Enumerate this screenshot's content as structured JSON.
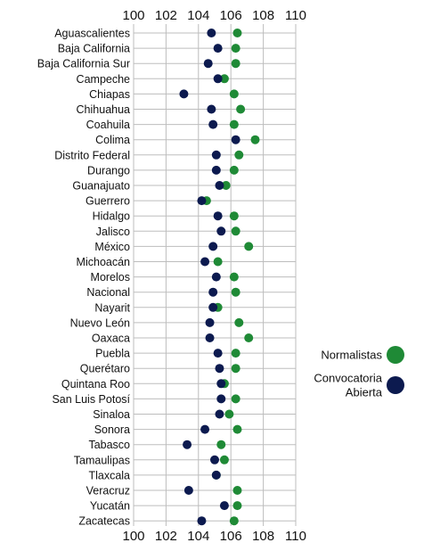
{
  "chart_data": {
    "type": "scatter",
    "title": "",
    "xlabel": "",
    "ylabel": "",
    "xlim": [
      100,
      110
    ],
    "xticks": [
      "100",
      "102",
      "104",
      "106",
      "108",
      "110"
    ],
    "grid": true,
    "legend_position": "right",
    "categories": [
      "Aguascalientes",
      "Baja California",
      "Baja California Sur",
      "Campeche",
      "Chiapas",
      "Chihuahua",
      "Coahuila",
      "Colima",
      "Distrito Federal",
      "Durango",
      "Guanajuato",
      "Guerrero",
      "Hidalgo",
      "Jalisco",
      "México",
      "Michoacán",
      "Morelos",
      "Nacional",
      "Nayarit",
      "Nuevo León",
      "Oaxaca",
      "Puebla",
      "Querétaro",
      "Quintana Roo",
      "San Luis Potosí",
      "Sinaloa",
      "Sonora",
      "Tabasco",
      "Tamaulipas",
      "Tlaxcala",
      "Veracruz",
      "Yucatán",
      "Zacatecas"
    ],
    "series": [
      {
        "name": "Normalistas",
        "color": "#1f8a36",
        "values": [
          106.4,
          106.3,
          106.3,
          105.6,
          106.2,
          106.6,
          106.2,
          107.5,
          106.5,
          106.2,
          105.7,
          104.5,
          106.2,
          106.3,
          107.1,
          105.2,
          106.2,
          106.3,
          105.2,
          106.5,
          107.1,
          106.3,
          106.3,
          105.6,
          106.3,
          105.9,
          106.4,
          105.4,
          105.6,
          105.1,
          106.4,
          106.4,
          106.2
        ]
      },
      {
        "name": "Convocatoria\nAbierta",
        "color": "#0c1a4f",
        "values": [
          104.8,
          105.2,
          104.6,
          105.2,
          103.1,
          104.8,
          104.9,
          106.3,
          105.1,
          105.1,
          105.3,
          104.2,
          105.2,
          105.4,
          104.9,
          104.4,
          105.1,
          104.9,
          104.9,
          104.7,
          104.7,
          105.2,
          105.3,
          105.4,
          105.4,
          105.3,
          104.4,
          103.3,
          105.0,
          105.1,
          103.4,
          105.6,
          104.2
        ]
      }
    ]
  }
}
